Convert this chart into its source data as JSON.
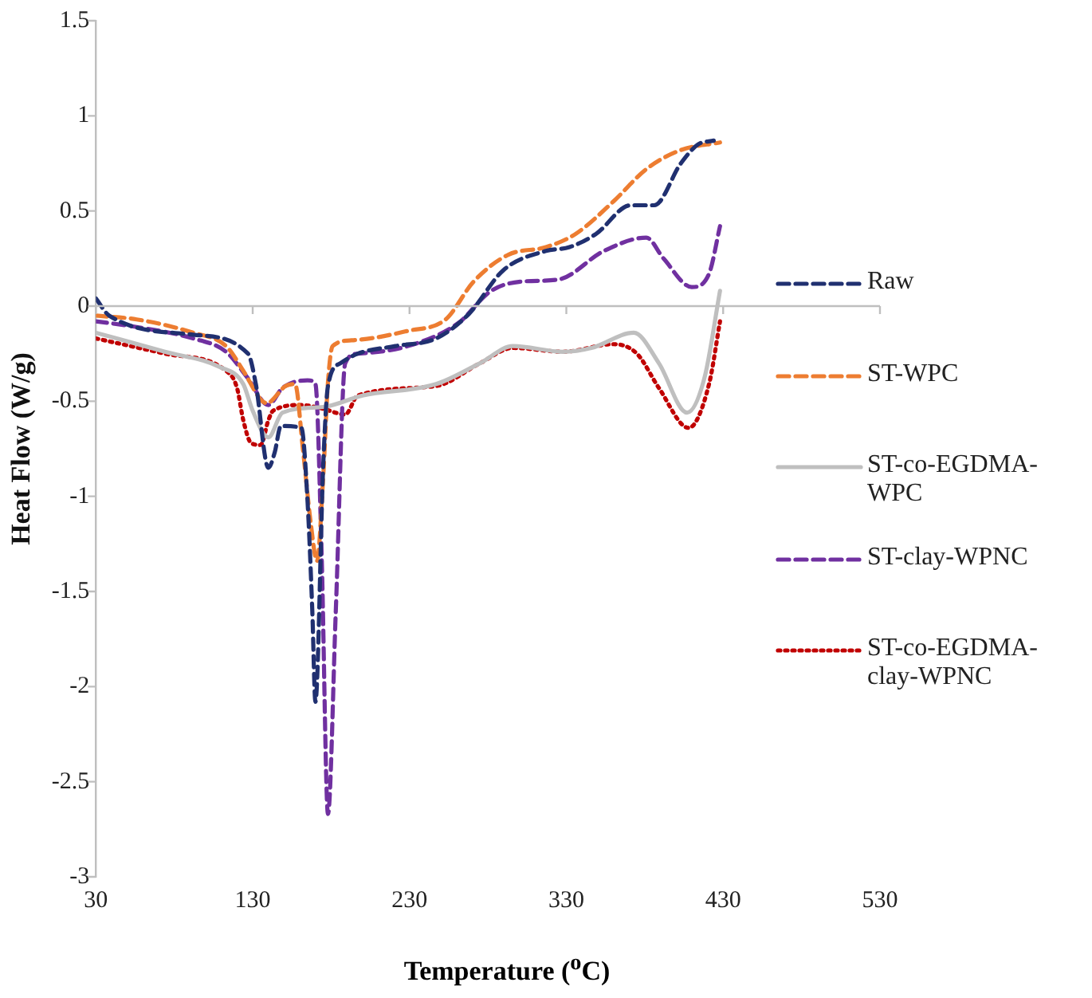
{
  "chart_data": {
    "type": "line",
    "xlabel": "Temperature ($^{o}$C)",
    "ylabel": "Heat Flow (W/g)",
    "xlim": [
      30,
      530
    ],
    "xticks": [
      30,
      130,
      230,
      330,
      430,
      530
    ],
    "ylim": [
      -3,
      1.5
    ],
    "yticks": [
      -3,
      -2.5,
      -2,
      -1.5,
      -1,
      -0.5,
      0,
      0.5,
      1,
      1.5
    ],
    "grid": false,
    "ref_lines": [
      {
        "axis": "y",
        "value": 0,
        "color": "#bfbfbf"
      }
    ],
    "legend": "right",
    "marker": "none",
    "series": [
      {
        "name": "Raw",
        "color": "#203070",
        "line_style": "dashed",
        "x": [
          30,
          38.5,
          92,
          127,
          132,
          140,
          144,
          148,
          161,
          165,
          168,
          170,
          175,
          178,
          186,
          197,
          221,
          247,
          268,
          290,
          317,
          332,
          349,
          371,
          386,
          403,
          414,
          424
        ],
        "values": [
          0.04,
          -0.05,
          -0.15,
          -0.25,
          -0.41,
          -0.85,
          -0.77,
          -0.63,
          -0.64,
          -1.03,
          -1.6,
          -2.08,
          -0.83,
          -0.42,
          -0.3,
          -0.25,
          -0.21,
          -0.17,
          -0.04,
          0.19,
          0.29,
          0.31,
          0.38,
          0.53,
          0.53,
          0.75,
          0.85,
          0.87
        ]
      },
      {
        "name": "ST-WPC",
        "color": "#ed7d31",
        "line_style": "dashed",
        "x": [
          30,
          56,
          92,
          113,
          124,
          135,
          139,
          151,
          157,
          162,
          167,
          171,
          175,
          178,
          181,
          193,
          229,
          253,
          271,
          293,
          317,
          336,
          360,
          381,
          403,
          428
        ],
        "values": [
          -0.05,
          -0.07,
          -0.14,
          -0.21,
          -0.34,
          -0.49,
          -0.51,
          -0.42,
          -0.41,
          -0.75,
          -1.14,
          -1.34,
          -0.89,
          -0.4,
          -0.21,
          -0.18,
          -0.13,
          -0.07,
          0.13,
          0.27,
          0.31,
          0.38,
          0.55,
          0.72,
          0.82,
          0.86
        ]
      },
      {
        "name": "ST-co-EGDMA-WPC",
        "color": "#bfbfbf",
        "line_style": "solid",
        "x": [
          30,
          74,
          109,
          124,
          130,
          140,
          149,
          175,
          200,
          247,
          275,
          296,
          328,
          346,
          373,
          389,
          407,
          418,
          428
        ],
        "values": [
          -0.14,
          -0.24,
          -0.32,
          -0.41,
          -0.55,
          -0.69,
          -0.56,
          -0.53,
          -0.47,
          -0.41,
          -0.3,
          -0.21,
          -0.24,
          -0.22,
          -0.14,
          -0.3,
          -0.56,
          -0.38,
          0.08
        ]
      },
      {
        "name": "ST-clay-WPNC",
        "color": "#7030a0",
        "line_style": "dashed",
        "x": [
          30,
          56,
          92,
          113,
          127,
          140,
          149,
          165,
          170,
          174,
          178,
          183,
          189,
          197,
          229,
          261,
          282,
          303,
          325,
          354,
          381,
          392,
          410,
          421,
          428
        ],
        "values": [
          -0.08,
          -0.11,
          -0.17,
          -0.24,
          -0.38,
          -0.52,
          -0.43,
          -0.39,
          -0.41,
          -1.32,
          -2.67,
          -1.6,
          -0.3,
          -0.25,
          -0.21,
          -0.09,
          0.08,
          0.13,
          0.14,
          0.29,
          0.36,
          0.25,
          0.1,
          0.17,
          0.42
        ]
      },
      {
        "name": "ST-co-EGDMA-clay-WPNC",
        "color": "#c00000",
        "line_style": "dotted",
        "x": [
          30,
          74,
          113,
          120,
          124,
          129,
          135,
          140,
          143,
          161,
          175,
          189,
          197,
          247,
          275,
          296,
          328,
          360,
          375,
          389,
          408,
          421,
          428
        ],
        "values": [
          -0.17,
          -0.25,
          -0.34,
          -0.43,
          -0.6,
          -0.72,
          -0.73,
          -0.6,
          -0.55,
          -0.52,
          -0.54,
          -0.57,
          -0.47,
          -0.42,
          -0.3,
          -0.22,
          -0.24,
          -0.2,
          -0.25,
          -0.43,
          -0.64,
          -0.41,
          -0.08
        ]
      }
    ]
  }
}
